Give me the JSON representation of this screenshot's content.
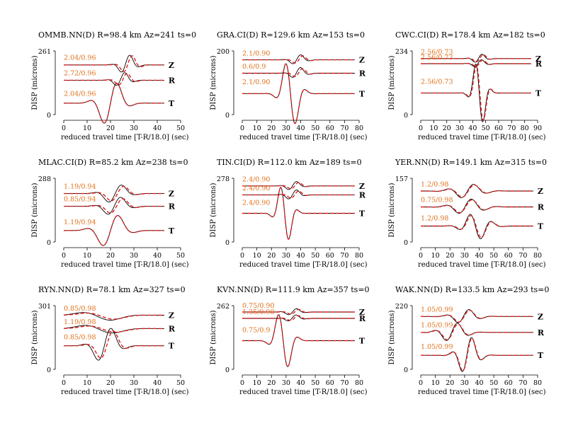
{
  "figure": {
    "colors": {
      "data": "#000000",
      "synthetic": "#e11a1a",
      "annotation": "#e0701a"
    }
  },
  "chart_data": [
    {
      "type": "line",
      "title": "OMMB.NN(D) R=98.4 km Az=241 ts=0",
      "ylabel": "DISP (microns)",
      "xlabel": "reduced travel time [T-R/18.0] (sec)",
      "y_top_label": "261",
      "y_bottom_label": "0",
      "xlim": [
        0,
        50
      ],
      "xticks": [
        0,
        10,
        20,
        30,
        40,
        50
      ],
      "x_end": 43,
      "traces": [
        {
          "component": "Z",
          "label": "2.04/0.96",
          "base": 0.78,
          "amp": 0.17,
          "center": 27,
          "width": 4,
          "freq": 1,
          "phase": 0.5,
          "syn_shift": 1.0,
          "syn_scale": 0.95
        },
        {
          "component": "R",
          "label": "2.72/0.96",
          "base": 0.54,
          "amp": 0.13,
          "center": 25,
          "width": 4,
          "freq": 1,
          "phase": 0.6,
          "syn_shift": 1.0,
          "syn_scale": 0.9
        },
        {
          "component": "T",
          "label": "2.04/0.96",
          "base": 0.18,
          "amp": 0.4,
          "center": 20,
          "width": 6,
          "freq": 1,
          "phase": 0.0,
          "syn_shift": 0.0,
          "syn_scale": 1.0
        }
      ]
    },
    {
      "type": "line",
      "title": "GRA.CI(D) R=129.6 km Az=153 ts=0",
      "ylabel": "DISP (microns)",
      "xlabel": "reduced travel time [T-R/18.0] (sec)",
      "y_top_label": "200",
      "y_bottom_label": "0",
      "xlim": [
        0,
        80
      ],
      "xticks": [
        0,
        10,
        20,
        30,
        40,
        50,
        60,
        70,
        80
      ],
      "x_end": 77,
      "traces": [
        {
          "component": "Z",
          "label": "2.1/0.90",
          "base": 0.86,
          "amp": 0.09,
          "center": 38,
          "width": 6,
          "freq": 1,
          "phase": 0.4,
          "syn_shift": 1.5,
          "syn_scale": 0.8
        },
        {
          "component": "R",
          "label": "0.6/0.9",
          "base": 0.65,
          "amp": 0.1,
          "center": 38,
          "width": 6,
          "freq": 1,
          "phase": 0.5,
          "syn_shift": 1.5,
          "syn_scale": 0.8
        },
        {
          "component": "T",
          "label": "2.1/0.90",
          "base": 0.33,
          "amp": 0.6,
          "center": 33,
          "width": 7,
          "freq": 1,
          "phase": 3.14,
          "syn_shift": 0.0,
          "syn_scale": 1.0
        }
      ]
    },
    {
      "type": "line",
      "title": "CWC.CI(D) R=178.4 km Az=182 ts=0",
      "ylabel": "DISP (microns)",
      "xlabel": "reduced travel time [T-R/18.0] (sec)",
      "y_top_label": "234",
      "y_bottom_label": "0",
      "xlim": [
        0,
        90
      ],
      "xticks": [
        0,
        10,
        20,
        30,
        40,
        50,
        60,
        70,
        80,
        90
      ],
      "x_end": 85,
      "traces": [
        {
          "component": "Z",
          "label": "2.56/0.73",
          "base": 0.88,
          "amp": 0.08,
          "center": 45,
          "width": 6,
          "freq": 1,
          "phase": 0.3,
          "syn_shift": 1.0,
          "syn_scale": 0.9
        },
        {
          "component": "R",
          "label": "2.56/0.73",
          "base": 0.8,
          "amp": 0.07,
          "center": 45,
          "width": 6,
          "freq": 1,
          "phase": 0.5,
          "syn_shift": 1.0,
          "syn_scale": 0.9
        },
        {
          "component": "T",
          "label": "2.56/0.73",
          "base": 0.34,
          "amp": 0.58,
          "center": 45,
          "width": 6,
          "freq": 1,
          "phase": 3.14,
          "syn_shift": 0.5,
          "syn_scale": 0.95
        }
      ]
    },
    {
      "type": "line",
      "title": "MLAC.CI(D) R=85.2 km Az=238 ts=0",
      "ylabel": "DISP (microns)",
      "xlabel": "reduced travel time [T-R/18.0] (sec)",
      "y_top_label": "288",
      "y_bottom_label": "0",
      "xlim": [
        0,
        50
      ],
      "xticks": [
        0,
        10,
        20,
        30,
        40,
        50
      ],
      "x_end": 43,
      "traces": [
        {
          "component": "Z",
          "label": "1.19/0.94",
          "base": 0.76,
          "amp": 0.17,
          "center": 22,
          "width": 6,
          "freq": 1,
          "phase": 0.0,
          "syn_shift": 1.0,
          "syn_scale": 0.85
        },
        {
          "component": "R",
          "label": "0.85/0.94",
          "base": 0.56,
          "amp": 0.17,
          "center": 22,
          "width": 6,
          "freq": 1,
          "phase": 0.2,
          "syn_shift": 1.0,
          "syn_scale": 0.85
        },
        {
          "component": "T",
          "label": "1.19/0.94",
          "base": 0.18,
          "amp": 0.3,
          "center": 20,
          "width": 7,
          "freq": 1,
          "phase": 0.0,
          "syn_shift": 0.0,
          "syn_scale": 1.0
        }
      ]
    },
    {
      "type": "line",
      "title": "TIN.CI(D) R=112.0 km Az=189 ts=0",
      "ylabel": "DISP (microns)",
      "xlabel": "reduced travel time [T-R/18.0] (sec)",
      "y_top_label": "278",
      "y_bottom_label": "0",
      "xlim": [
        0,
        80
      ],
      "xticks": [
        0,
        10,
        20,
        30,
        40,
        50,
        60,
        70,
        80
      ],
      "x_end": 77,
      "traces": [
        {
          "component": "Z",
          "label": "2.4/0.90",
          "base": 0.88,
          "amp": 0.08,
          "center": 35,
          "width": 6,
          "freq": 1,
          "phase": 0.3,
          "syn_shift": 1.5,
          "syn_scale": 0.8
        },
        {
          "component": "R",
          "label": "2.4/0.90",
          "base": 0.74,
          "amp": 0.09,
          "center": 35,
          "width": 6,
          "freq": 1,
          "phase": 0.3,
          "syn_shift": 1.5,
          "syn_scale": 0.8
        },
        {
          "component": "T",
          "label": "2.4/0.90",
          "base": 0.45,
          "amp": 0.52,
          "center": 29,
          "width": 6,
          "freq": 1,
          "phase": 3.14,
          "syn_shift": 0.0,
          "syn_scale": 1.0
        }
      ]
    },
    {
      "type": "line",
      "title": "YER.NN(D) R=149.1 km Az=315 ts=0",
      "ylabel": "DISP (microns)",
      "xlabel": "reduced travel time [T-R/18.0] (sec)",
      "y_top_label": "157",
      "y_bottom_label": "0",
      "xlim": [
        0,
        80
      ],
      "xticks": [
        0,
        10,
        20,
        30,
        40,
        50,
        60,
        70,
        80
      ],
      "x_end": 77,
      "traces": [
        {
          "component": "Z",
          "label": "1.2/0.98",
          "base": 0.8,
          "amp": 0.12,
          "center": 32,
          "width": 12,
          "freq": 1.4,
          "phase": 0.0,
          "syn_shift": 0.5,
          "syn_scale": 0.9
        },
        {
          "component": "R",
          "label": "0.75/0.98",
          "base": 0.55,
          "amp": 0.13,
          "center": 32,
          "width": 12,
          "freq": 1.4,
          "phase": 0.6,
          "syn_shift": 0.5,
          "syn_scale": 0.9
        },
        {
          "component": "T",
          "label": "1.2/0.98",
          "base": 0.25,
          "amp": 0.22,
          "center": 38,
          "width": 10,
          "freq": 1.4,
          "phase": 3.4,
          "syn_shift": 0.5,
          "syn_scale": 0.9
        }
      ]
    },
    {
      "type": "line",
      "title": "RYN.NN(D) R=78.1 km Az=327 ts=0",
      "ylabel": "DISP (microns)",
      "xlabel": "reduced travel time [T-R/18.0] (sec)",
      "y_top_label": "301",
      "y_bottom_label": "0",
      "xlim": [
        0,
        50
      ],
      "xticks": [
        0,
        10,
        20,
        30,
        40,
        50
      ],
      "x_end": 43,
      "traces": [
        {
          "component": "Z",
          "label": "0.85/0.98",
          "base": 0.85,
          "amp": 0.1,
          "center": 16,
          "width": 10,
          "freq": 0.6,
          "phase": 3.6,
          "syn_shift": 1.5,
          "syn_scale": 0.8
        },
        {
          "component": "R",
          "label": "1.19/0.98",
          "base": 0.64,
          "amp": 0.1,
          "center": 16,
          "width": 10,
          "freq": 0.6,
          "phase": 3.4,
          "syn_shift": 1.5,
          "syn_scale": 0.8
        },
        {
          "component": "T",
          "label": "0.85/0.98",
          "base": 0.37,
          "amp": 0.32,
          "center": 18,
          "width": 6,
          "freq": 1,
          "phase": 0.3,
          "syn_shift": 1.0,
          "syn_scale": 0.85
        }
      ]
    },
    {
      "type": "line",
      "title": "KVN.NN(D) R=111.9 km Az=357 ts=0",
      "ylabel": "DISP (microns)",
      "xlabel": "reduced travel time [T-R/18.0] (sec)",
      "y_top_label": "262",
      "y_bottom_label": "0",
      "xlim": [
        0,
        80
      ],
      "xticks": [
        0,
        10,
        20,
        30,
        40,
        50,
        60,
        70,
        80
      ],
      "x_end": 77,
      "traces": [
        {
          "component": "Z",
          "label": "0.75/0.90",
          "base": 0.9,
          "amp": 0.06,
          "center": 35,
          "width": 6,
          "freq": 1,
          "phase": 0.3,
          "syn_shift": 1.5,
          "syn_scale": 0.8
        },
        {
          "component": "R",
          "label": "1.35/0.90",
          "base": 0.8,
          "amp": 0.06,
          "center": 35,
          "width": 6,
          "freq": 1,
          "phase": 0.5,
          "syn_shift": 1.5,
          "syn_scale": 0.8
        },
        {
          "component": "T",
          "label": "0.75/0.9",
          "base": 0.45,
          "amp": 0.52,
          "center": 28,
          "width": 7,
          "freq": 1,
          "phase": 3.14,
          "syn_shift": 0.0,
          "syn_scale": 1.0
        }
      ]
    },
    {
      "type": "line",
      "title": "WAK.NN(D) R=133.5 km Az=293 ts=0",
      "ylabel": "DISP (microns)",
      "xlabel": "reduced travel time [T-R/18.0] (sec)",
      "y_top_label": "220",
      "y_bottom_label": "0",
      "xlim": [
        0,
        80
      ],
      "xticks": [
        0,
        10,
        20,
        30,
        40,
        50,
        60,
        70,
        80
      ],
      "x_end": 77,
      "traces": [
        {
          "component": "Z",
          "label": "1.05/0.99",
          "base": 0.83,
          "amp": 0.12,
          "center": 30,
          "width": 10,
          "freq": 1.3,
          "phase": 0.3,
          "syn_shift": 0.5,
          "syn_scale": 0.9
        },
        {
          "component": "R",
          "label": "1.05/0.99",
          "base": 0.58,
          "amp": 0.16,
          "center": 22,
          "width": 10,
          "freq": 1.3,
          "phase": 0.3,
          "syn_shift": 0.5,
          "syn_scale": 0.9
        },
        {
          "component": "T",
          "label": "1.05/0.99",
          "base": 0.22,
          "amp": 0.32,
          "center": 32,
          "width": 8,
          "freq": 1.2,
          "phase": 0.2,
          "syn_shift": 0.3,
          "syn_scale": 0.95
        }
      ]
    }
  ]
}
